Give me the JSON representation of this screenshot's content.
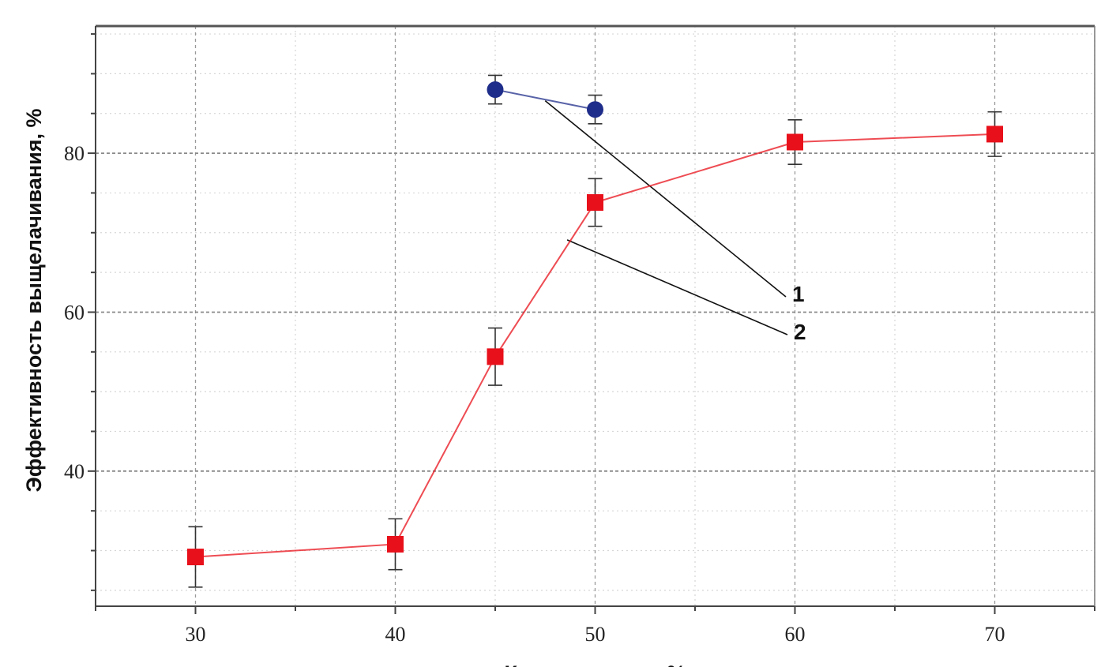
{
  "chart_data": {
    "type": "line",
    "title": "",
    "ylabel": "Эффективность выщелачивания, %",
    "xlabel": "Концентрация, %",
    "xlim": [
      25,
      75
    ],
    "ylim": [
      23,
      96
    ],
    "x_ticks": [
      30,
      40,
      50,
      60,
      70
    ],
    "y_ticks": [
      40,
      60,
      80
    ],
    "grid": true,
    "legend": "none",
    "series": [
      {
        "name": "1",
        "color": "#1f2d8a",
        "marker": "circle",
        "x": [
          45,
          50
        ],
        "y": [
          88.0,
          85.5
        ],
        "err": [
          1.8,
          1.8
        ]
      },
      {
        "name": "2",
        "color": "#e8101a",
        "marker": "square",
        "x": [
          30,
          40,
          45,
          50,
          60,
          70
        ],
        "y": [
          29.2,
          30.8,
          54.4,
          73.8,
          81.4,
          82.4
        ],
        "err": [
          3.8,
          3.2,
          3.6,
          3.0,
          2.8,
          2.8
        ]
      }
    ],
    "annotations": [
      {
        "text": "1",
        "series": "1",
        "at_x": 47.5,
        "at_y": 86.6
      },
      {
        "text": "2",
        "series": "2",
        "at_x": 48.6,
        "at_y": 69.1
      }
    ]
  }
}
